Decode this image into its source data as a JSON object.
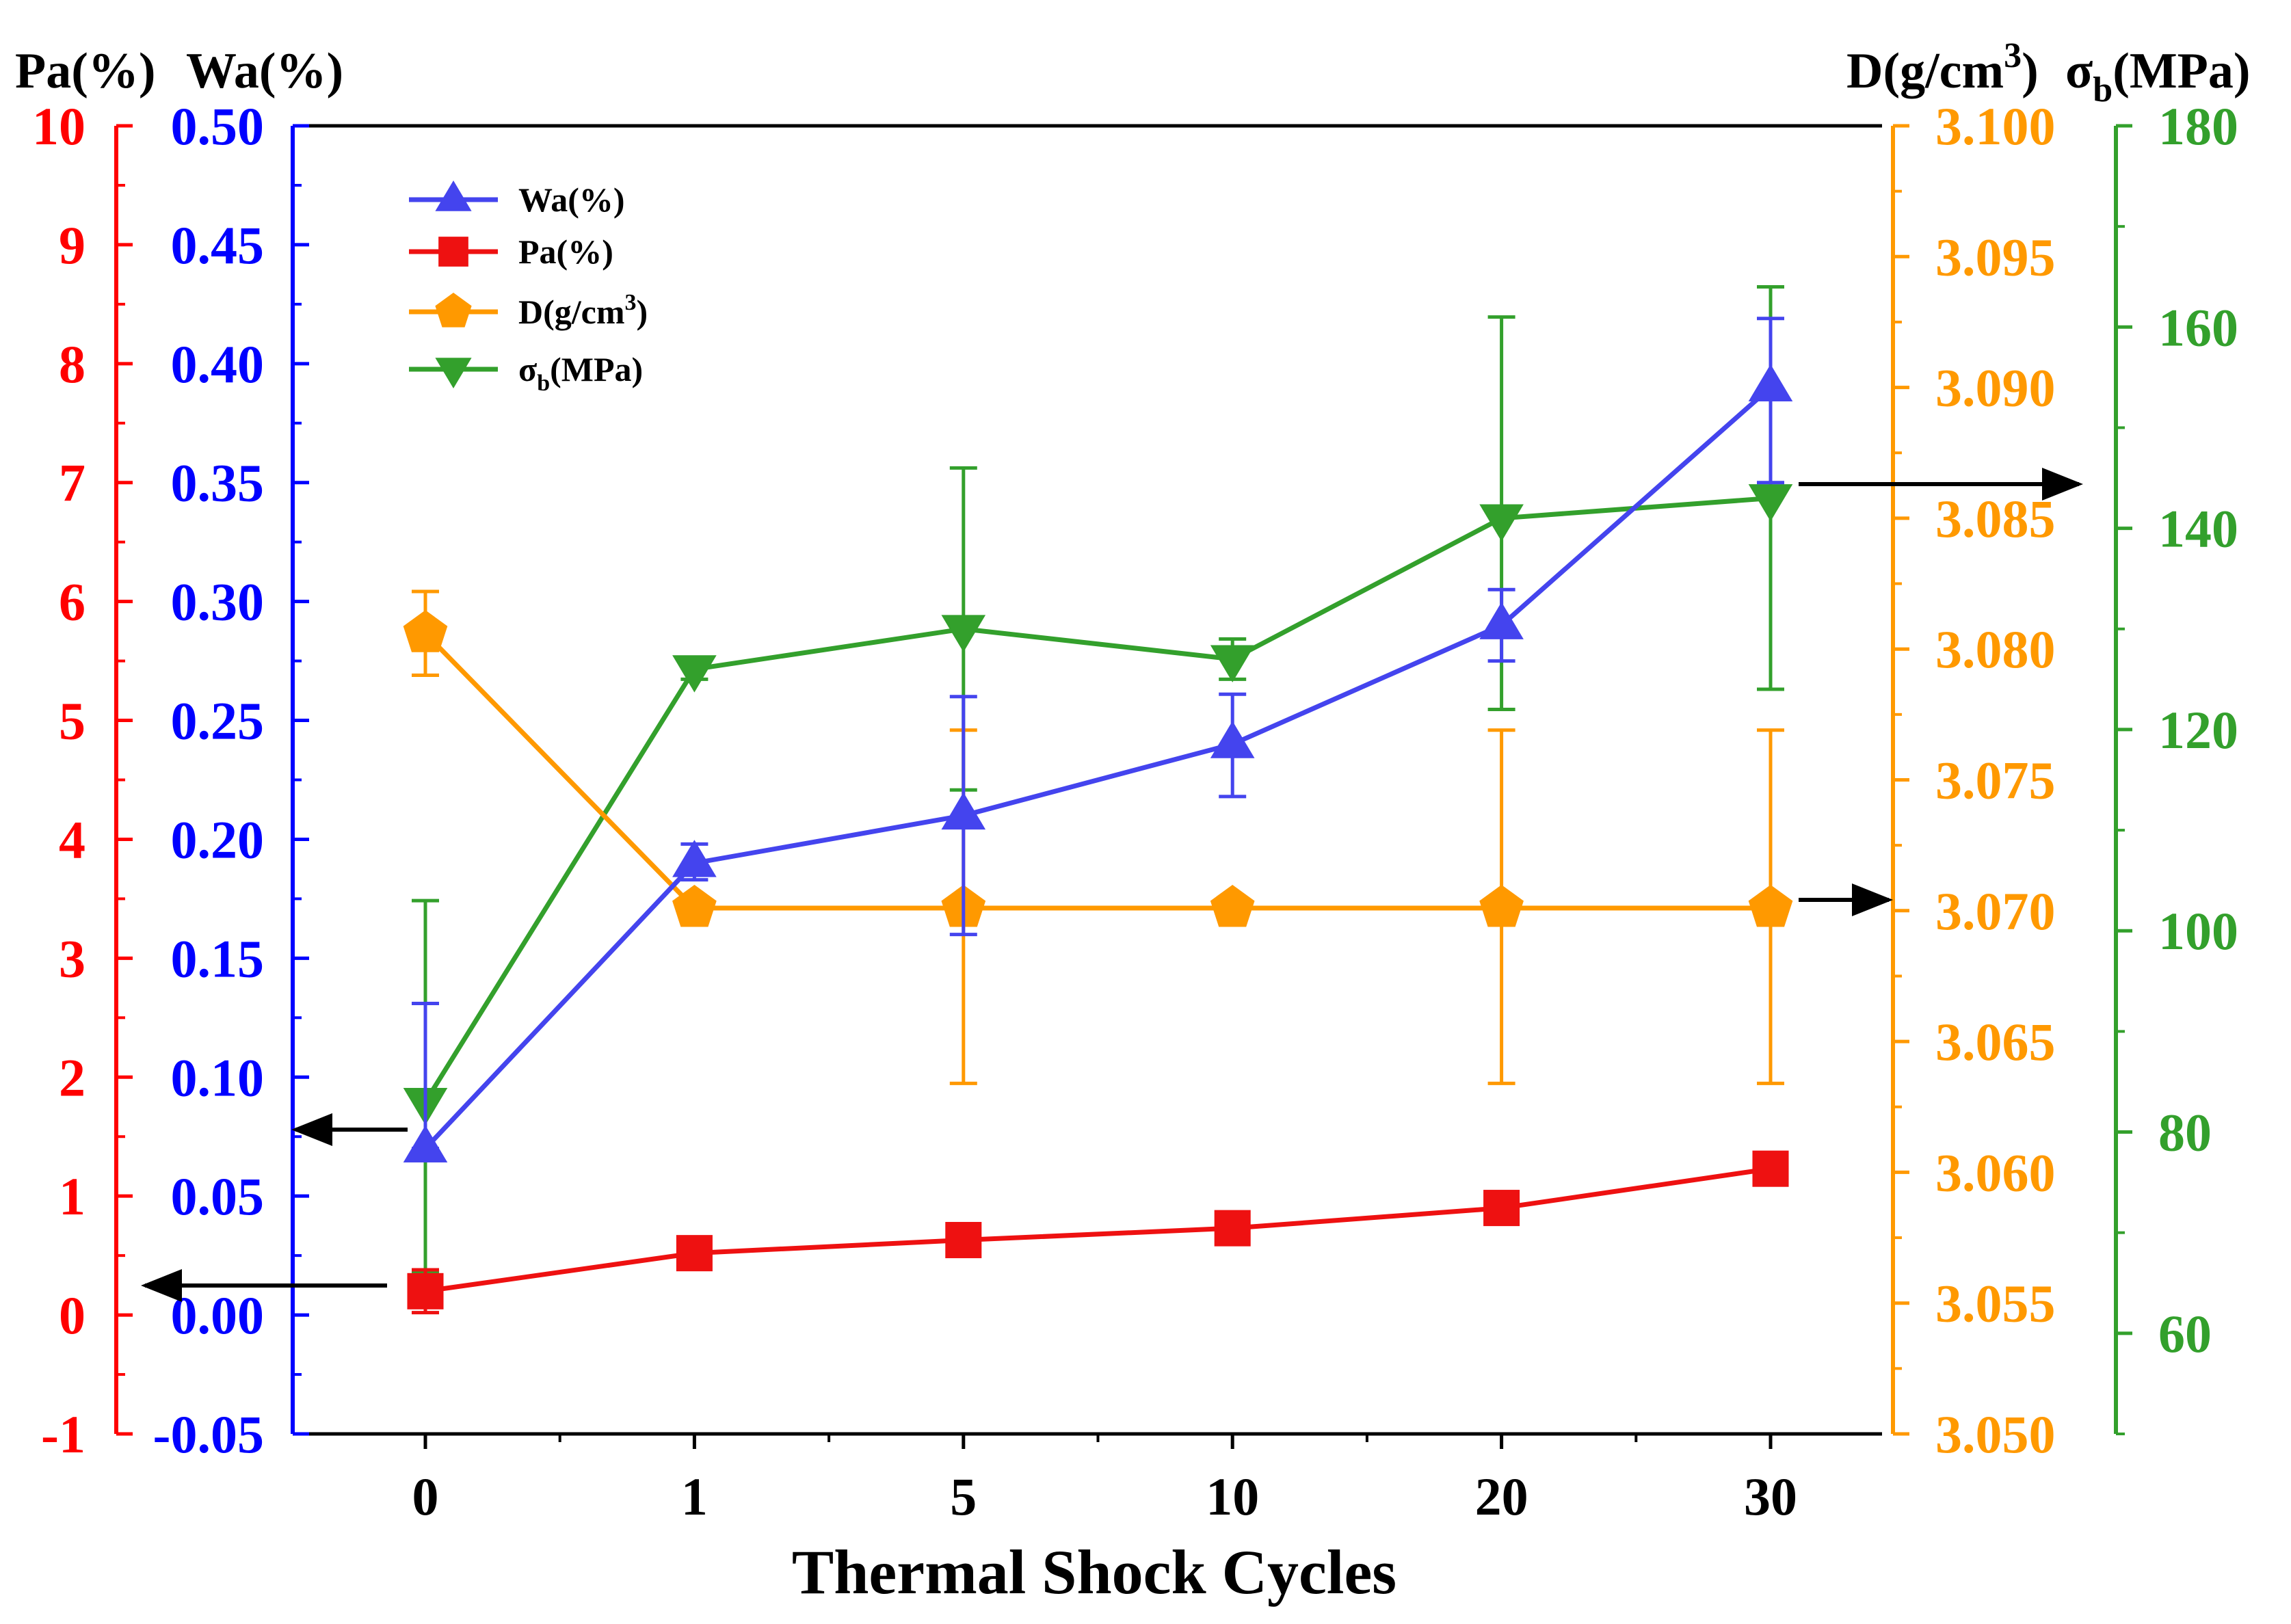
{
  "chart_data": {
    "type": "line",
    "xlabel": "Thermal Shock Cycles",
    "categories": [
      "0",
      "1",
      "5",
      "10",
      "20",
      "30"
    ],
    "axes": {
      "pa": {
        "title": "Pa(%)",
        "color": "#ff0000",
        "side": "left-outer",
        "ylim": [
          -1,
          10
        ],
        "ticks": [
          -1,
          0,
          1,
          2,
          3,
          4,
          5,
          6,
          7,
          8,
          9,
          10
        ],
        "tick_labels": [
          "-1",
          "0",
          "1",
          "2",
          "3",
          "4",
          "5",
          "6",
          "7",
          "8",
          "9",
          "10"
        ]
      },
      "wa": {
        "title": "Wa(%)",
        "color": "#0000ff",
        "side": "left-inner",
        "ylim": [
          -0.05,
          0.5
        ],
        "ticks": [
          -0.05,
          0,
          0.05,
          0.1,
          0.15,
          0.2,
          0.25,
          0.3,
          0.35,
          0.4,
          0.45,
          0.5
        ],
        "tick_labels": [
          "-0.05",
          "0.00",
          "0.05",
          "0.10",
          "0.15",
          "0.20",
          "0.25",
          "0.30",
          "0.35",
          "0.40",
          "0.45",
          "0.50"
        ]
      },
      "d": {
        "title": "D(g/cm³)",
        "title_main": "D(g/cm",
        "title_sup": "3",
        "title_end": ")",
        "color": "#ff9900",
        "side": "right-inner",
        "ylim": [
          3.05,
          3.1
        ],
        "ticks": [
          3.05,
          3.055,
          3.06,
          3.065,
          3.07,
          3.075,
          3.08,
          3.085,
          3.09,
          3.095,
          3.1
        ],
        "tick_labels": [
          "3.050",
          "3.055",
          "3.060",
          "3.065",
          "3.070",
          "3.075",
          "3.080",
          "3.085",
          "3.090",
          "3.095",
          "3.100"
        ]
      },
      "sigma": {
        "title": "σb(MPa)",
        "title_main": "σ",
        "title_sub": "b",
        "title_end": "(MPa)",
        "color": "#33a02c",
        "side": "right-outer",
        "ylim": [
          50,
          180
        ],
        "ticks": [
          60,
          80,
          100,
          120,
          140,
          160,
          180
        ],
        "tick_labels": [
          "60",
          "80",
          "100",
          "120",
          "140",
          "160",
          "180"
        ]
      }
    },
    "series": [
      {
        "name": "Wa(%)",
        "axis": "wa",
        "color": "#4444ee",
        "marker": "triangle-up",
        "values": [
          0.07,
          0.19,
          0.21,
          0.24,
          0.29,
          0.39
        ],
        "err_low": [
          0.07,
          0.183,
          0.16,
          0.218,
          0.275,
          0.35
        ],
        "err_high": [
          0.131,
          0.198,
          0.26,
          0.261,
          0.305,
          0.419
        ]
      },
      {
        "name": "Pa(%)",
        "axis": "pa",
        "color": "#ee1111",
        "marker": "square",
        "values": [
          0.2,
          0.52,
          0.63,
          0.73,
          0.9,
          1.23
        ],
        "err_low": [
          0.02,
          0.48,
          0.52,
          0.68,
          0.86,
          1.16
        ],
        "err_high": [
          0.38,
          0.58,
          0.74,
          0.79,
          0.96,
          1.28
        ]
      },
      {
        "name": "D(g/cm³)",
        "name_main": "D(g/cm",
        "name_sup": "3",
        "name_end": ")",
        "axis": "d",
        "color": "#ff9900",
        "marker": "pentagon",
        "values": [
          3.0806,
          3.0701,
          3.0701,
          3.0701,
          3.0701,
          3.0701
        ],
        "err_low": [
          3.079,
          3.07,
          3.0634,
          3.07,
          3.0634,
          3.0634
        ],
        "err_high": [
          3.0822,
          3.07,
          3.0769,
          3.07,
          3.0769,
          3.0769
        ]
      },
      {
        "name": "σb(MPa)",
        "name_main": "σ",
        "name_sub": "b",
        "name_end": "(MPa)",
        "axis": "sigma",
        "color": "#33a02c",
        "marker": "triangle-down",
        "values": [
          83,
          126,
          130,
          127,
          141,
          143
        ],
        "err_low": [
          66,
          125,
          114,
          125,
          122,
          124
        ],
        "err_high": [
          103,
          127,
          146,
          129,
          161,
          164
        ]
      }
    ],
    "legend": {
      "position": "top-left",
      "entries": [
        "Wa(%)",
        "Pa(%)",
        "D(g/cm³)",
        "σb(MPa)"
      ]
    },
    "annotations": [
      {
        "type": "arrow",
        "direction": "left",
        "points_to_axis": "wa",
        "series": "Wa(%)"
      },
      {
        "type": "arrow",
        "direction": "left",
        "points_to_axis": "pa",
        "series": "Pa(%)"
      },
      {
        "type": "arrow",
        "direction": "right",
        "points_to_axis": "d",
        "series": "D(g/cm³)"
      },
      {
        "type": "arrow",
        "direction": "right",
        "points_to_axis": "sigma",
        "series": "σb(MPa)"
      }
    ]
  }
}
